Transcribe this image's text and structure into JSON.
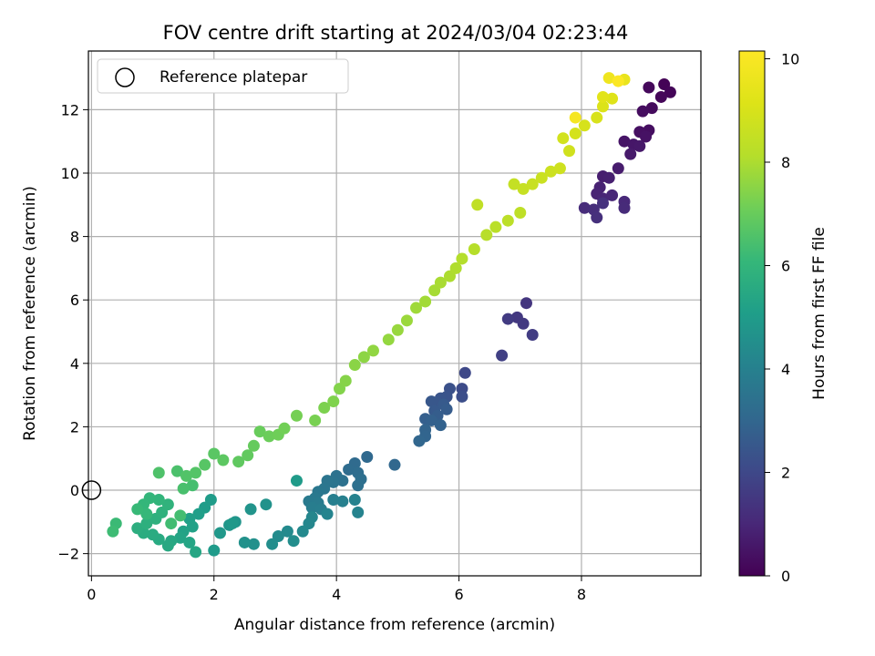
{
  "chart_data": {
    "type": "scatter",
    "title": "FOV centre drift starting at 2024/03/04 02:23:44",
    "xlabel": "Angular distance from reference (arcmin)",
    "ylabel": "Rotation from reference (arcmin)",
    "xlim": [
      -0.05,
      9.95
    ],
    "ylim": [
      -2.7,
      13.85
    ],
    "xticks": [
      0,
      2,
      4,
      6,
      8
    ],
    "yticks": [
      -2,
      0,
      2,
      4,
      6,
      8,
      10,
      12
    ],
    "grid": true,
    "legend": {
      "position": "top-left",
      "entries": [
        "Reference platepar"
      ]
    },
    "reference_point": {
      "x": 0,
      "y": 0,
      "label": "Reference platepar"
    },
    "colorbar": {
      "label": "Hours from first FF file",
      "range": [
        0,
        10.15
      ],
      "ticks": [
        0,
        2,
        4,
        6,
        8,
        10
      ],
      "colormap": "viridis"
    },
    "points": [
      [
        9.35,
        12.8,
        0.05
      ],
      [
        9.45,
        12.55,
        0.1
      ],
      [
        9.3,
        12.4,
        0.15
      ],
      [
        9.1,
        12.7,
        0.2
      ],
      [
        9.15,
        12.05,
        0.25
      ],
      [
        9.0,
        11.95,
        0.3
      ],
      [
        9.1,
        11.35,
        0.35
      ],
      [
        8.95,
        11.3,
        0.4
      ],
      [
        9.05,
        11.15,
        0.45
      ],
      [
        8.7,
        11.0,
        0.5
      ],
      [
        8.85,
        10.9,
        0.55
      ],
      [
        8.95,
        10.85,
        0.6
      ],
      [
        8.8,
        10.6,
        0.65
      ],
      [
        8.6,
        10.15,
        0.7
      ],
      [
        8.35,
        9.9,
        0.75
      ],
      [
        8.45,
        9.85,
        0.8
      ],
      [
        8.3,
        9.55,
        0.85
      ],
      [
        8.25,
        9.35,
        0.9
      ],
      [
        8.35,
        9.2,
        0.95
      ],
      [
        8.5,
        9.3,
        1.0
      ],
      [
        8.7,
        9.1,
        1.05
      ],
      [
        8.7,
        8.9,
        1.1
      ],
      [
        8.05,
        8.9,
        1.15
      ],
      [
        8.2,
        8.85,
        1.2
      ],
      [
        8.25,
        8.6,
        1.25
      ],
      [
        8.35,
        9.05,
        1.3
      ],
      [
        7.1,
        5.9,
        1.45
      ],
      [
        6.95,
        5.45,
        1.5
      ],
      [
        7.05,
        5.25,
        1.55
      ],
      [
        6.8,
        5.4,
        1.6
      ],
      [
        7.2,
        4.9,
        1.65
      ],
      [
        6.7,
        4.25,
        1.75
      ],
      [
        6.1,
        3.7,
        2.0
      ],
      [
        6.05,
        3.2,
        2.1
      ],
      [
        6.05,
        2.95,
        2.2
      ],
      [
        5.85,
        3.2,
        2.3
      ],
      [
        5.8,
        2.95,
        2.35
      ],
      [
        5.7,
        2.9,
        2.4
      ],
      [
        5.65,
        2.75,
        2.45
      ],
      [
        5.55,
        2.8,
        2.5
      ],
      [
        5.6,
        2.5,
        2.55
      ],
      [
        5.75,
        2.7,
        2.6
      ],
      [
        5.8,
        2.55,
        2.65
      ],
      [
        5.65,
        2.35,
        2.7
      ],
      [
        5.45,
        2.25,
        2.75
      ],
      [
        5.55,
        2.2,
        2.8
      ],
      [
        5.7,
        2.05,
        2.85
      ],
      [
        5.45,
        1.9,
        2.9
      ],
      [
        5.45,
        1.7,
        2.95
      ],
      [
        5.35,
        1.55,
        3.0
      ],
      [
        4.95,
        0.8,
        3.05
      ],
      [
        4.5,
        1.05,
        3.1
      ],
      [
        4.3,
        0.85,
        3.15
      ],
      [
        4.2,
        0.65,
        3.2
      ],
      [
        4.35,
        0.55,
        3.25
      ],
      [
        4.4,
        0.35,
        3.3
      ],
      [
        4.35,
        0.15,
        3.35
      ],
      [
        4.1,
        0.3,
        3.4
      ],
      [
        4.0,
        0.45,
        3.45
      ],
      [
        3.95,
        0.25,
        3.5
      ],
      [
        3.85,
        0.3,
        3.55
      ],
      [
        3.8,
        0.05,
        3.6
      ],
      [
        3.7,
        -0.05,
        3.65
      ],
      [
        3.65,
        -0.25,
        3.7
      ],
      [
        3.55,
        -0.35,
        3.75
      ],
      [
        3.7,
        -0.4,
        3.8
      ],
      [
        3.6,
        -0.55,
        3.85
      ],
      [
        3.75,
        -0.6,
        3.9
      ],
      [
        3.95,
        -0.3,
        3.95
      ],
      [
        4.1,
        -0.35,
        4.0
      ],
      [
        4.3,
        -0.3,
        4.05
      ],
      [
        4.35,
        -0.7,
        4.1
      ],
      [
        3.85,
        -0.75,
        4.15
      ],
      [
        3.6,
        -0.85,
        4.2
      ],
      [
        3.55,
        -1.05,
        4.25
      ],
      [
        3.45,
        -1.3,
        4.3
      ],
      [
        3.2,
        -1.3,
        4.35
      ],
      [
        3.05,
        -1.45,
        4.4
      ],
      [
        3.3,
        -1.6,
        4.45
      ],
      [
        2.95,
        -1.7,
        4.5
      ],
      [
        2.65,
        -1.7,
        4.55
      ],
      [
        2.5,
        -1.65,
        4.6
      ],
      [
        2.85,
        -0.45,
        4.65
      ],
      [
        2.6,
        -0.6,
        4.7
      ],
      [
        2.35,
        -1.0,
        4.75
      ],
      [
        2.25,
        -1.1,
        4.8
      ],
      [
        2.1,
        -1.35,
        4.85
      ],
      [
        2.3,
        -1.05,
        4.9
      ],
      [
        2.0,
        -1.9,
        4.95
      ],
      [
        3.35,
        0.3,
        4.98
      ],
      [
        1.95,
        -0.3,
        5.0
      ],
      [
        1.85,
        -0.55,
        5.05
      ],
      [
        1.75,
        -0.75,
        5.1
      ],
      [
        1.6,
        -0.9,
        5.15
      ],
      [
        1.65,
        -1.15,
        5.2
      ],
      [
        1.5,
        -1.3,
        5.25
      ],
      [
        1.45,
        -1.5,
        5.3
      ],
      [
        1.6,
        -1.65,
        5.35
      ],
      [
        1.7,
        -1.95,
        5.4
      ],
      [
        1.3,
        -1.6,
        5.45
      ],
      [
        1.25,
        -1.75,
        5.5
      ],
      [
        1.1,
        -1.55,
        5.55
      ],
      [
        1.0,
        -1.4,
        5.6
      ],
      [
        0.85,
        -1.35,
        5.65
      ],
      [
        0.75,
        -1.2,
        5.7
      ],
      [
        0.9,
        -1.05,
        5.75
      ],
      [
        1.05,
        -0.9,
        5.8
      ],
      [
        1.15,
        -0.7,
        5.85
      ],
      [
        1.25,
        -0.45,
        5.9
      ],
      [
        1.1,
        -0.3,
        5.95
      ],
      [
        0.95,
        -0.25,
        6.0
      ],
      [
        0.85,
        -0.45,
        6.05
      ],
      [
        0.9,
        -0.75,
        6.1
      ],
      [
        0.75,
        -0.6,
        6.15
      ],
      [
        0.4,
        -1.05,
        6.2
      ],
      [
        0.35,
        -1.3,
        6.25
      ],
      [
        1.3,
        -1.05,
        6.3
      ],
      [
        1.45,
        -0.8,
        6.35
      ],
      [
        1.65,
        0.15,
        6.4
      ],
      [
        1.5,
        0.05,
        6.45
      ],
      [
        1.4,
        0.6,
        6.5
      ],
      [
        1.1,
        0.55,
        6.55
      ],
      [
        1.55,
        0.45,
        6.6
      ],
      [
        1.7,
        0.55,
        6.65
      ],
      [
        1.85,
        0.8,
        6.7
      ],
      [
        2.0,
        1.15,
        6.75
      ],
      [
        2.15,
        0.95,
        6.8
      ],
      [
        2.4,
        0.9,
        6.85
      ],
      [
        2.55,
        1.1,
        6.9
      ],
      [
        2.65,
        1.4,
        6.95
      ],
      [
        2.75,
        1.85,
        7.0
      ],
      [
        2.9,
        1.7,
        7.05
      ],
      [
        3.05,
        1.75,
        7.1
      ],
      [
        3.15,
        1.95,
        7.15
      ],
      [
        3.35,
        2.35,
        7.2
      ],
      [
        3.65,
        2.2,
        7.25
      ],
      [
        3.8,
        2.6,
        7.3
      ],
      [
        3.95,
        2.8,
        7.35
      ],
      [
        4.05,
        3.2,
        7.4
      ],
      [
        4.15,
        3.45,
        7.45
      ],
      [
        4.3,
        3.95,
        7.5
      ],
      [
        4.45,
        4.2,
        7.55
      ],
      [
        4.6,
        4.4,
        7.6
      ],
      [
        4.85,
        4.75,
        7.65
      ],
      [
        5.0,
        5.05,
        7.7
      ],
      [
        5.15,
        5.35,
        7.75
      ],
      [
        5.3,
        5.75,
        7.8
      ],
      [
        5.45,
        5.95,
        7.85
      ],
      [
        5.6,
        6.3,
        7.9
      ],
      [
        5.7,
        6.55,
        7.95
      ],
      [
        5.85,
        6.75,
        8.0
      ],
      [
        5.95,
        7.0,
        8.05
      ],
      [
        6.05,
        7.3,
        8.1
      ],
      [
        6.25,
        7.6,
        8.15
      ],
      [
        6.45,
        8.05,
        8.2
      ],
      [
        6.6,
        8.3,
        8.25
      ],
      [
        6.8,
        8.5,
        8.3
      ],
      [
        7.0,
        8.75,
        8.35
      ],
      [
        6.3,
        9.0,
        8.4
      ],
      [
        6.9,
        9.65,
        8.5
      ],
      [
        7.05,
        9.5,
        8.55
      ],
      [
        7.2,
        9.65,
        8.6
      ],
      [
        7.35,
        9.85,
        8.65
      ],
      [
        7.5,
        10.05,
        8.7
      ],
      [
        7.65,
        10.15,
        8.75
      ],
      [
        7.8,
        10.7,
        8.8
      ],
      [
        7.7,
        11.1,
        8.85
      ],
      [
        7.9,
        11.25,
        8.9
      ],
      [
        8.05,
        11.5,
        8.95
      ],
      [
        8.25,
        11.75,
        9.0
      ],
      [
        8.35,
        12.1,
        9.1
      ],
      [
        8.5,
        12.35,
        9.2
      ],
      [
        8.35,
        12.4,
        9.3
      ],
      [
        8.7,
        12.95,
        9.5
      ],
      [
        8.45,
        13.0,
        9.7
      ],
      [
        7.9,
        11.75,
        9.9
      ],
      [
        8.6,
        12.9,
        10.1
      ]
    ]
  }
}
